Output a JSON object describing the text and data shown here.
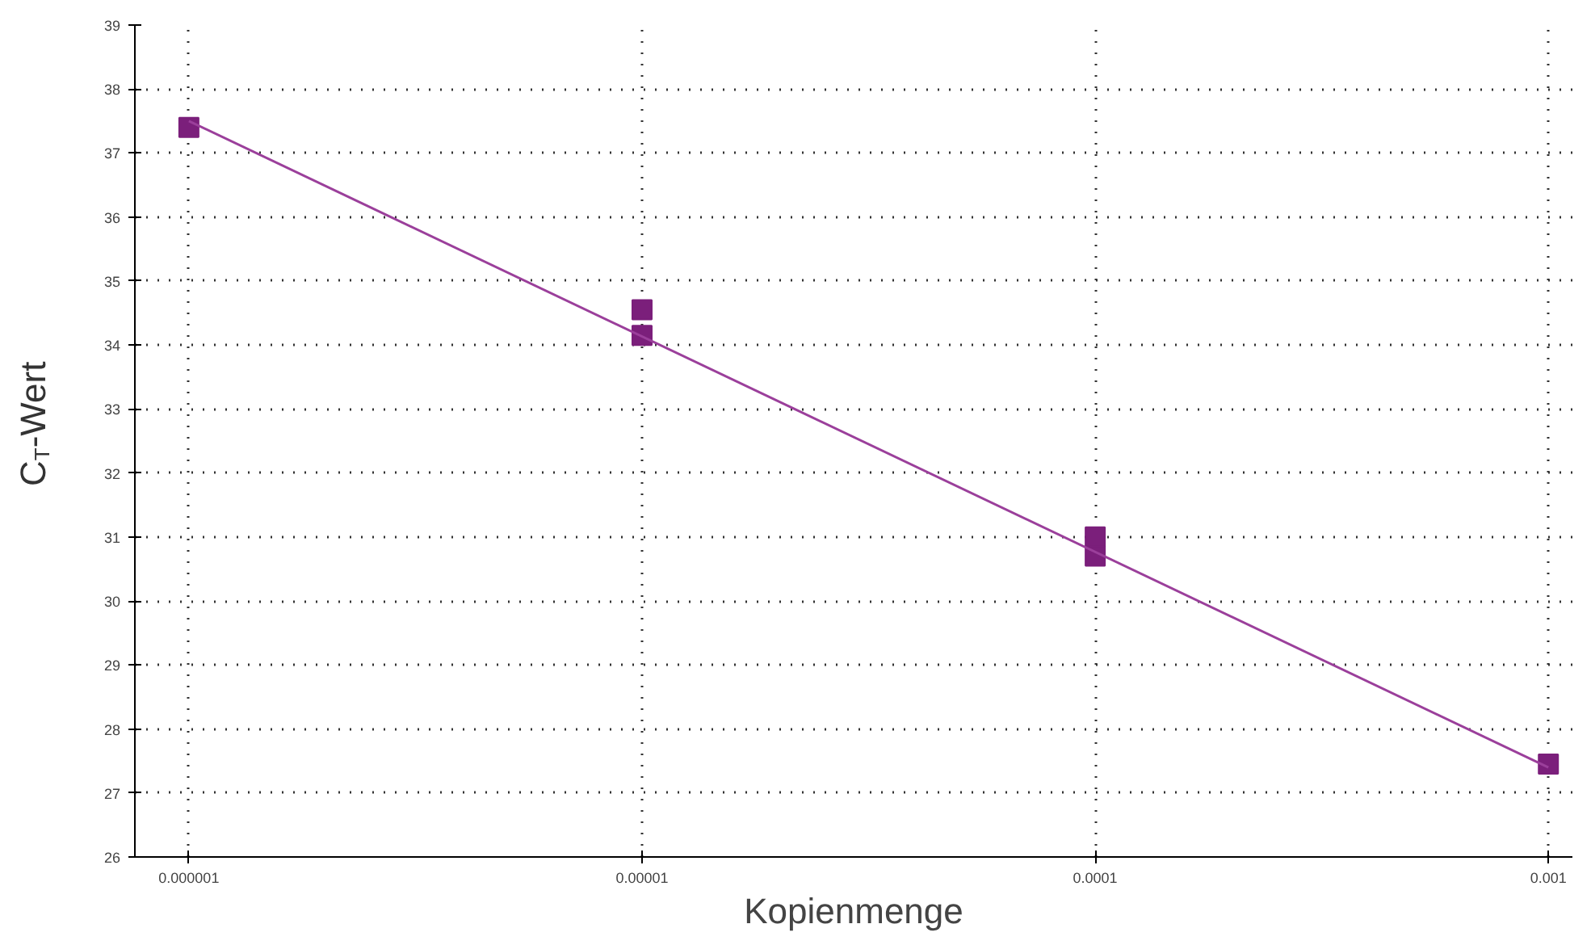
{
  "chart_data": {
    "type": "line",
    "xlabel": "Kopienmenge",
    "ylabel": "C$_{T}$-Wert",
    "log": "x",
    "grid": true,
    "xlim": [
      7.6e-07,
      0.00113
    ],
    "ylim": [
      26,
      39
    ],
    "xticks": [
      {
        "value": 1e-06,
        "label": "0.000001"
      },
      {
        "value": 1e-05,
        "label": "0.00001"
      },
      {
        "value": 0.0001,
        "label": "0.0001"
      },
      {
        "value": 0.001,
        "label": "0.001"
      }
    ],
    "yticks": [
      26,
      27,
      28,
      29,
      30,
      31,
      32,
      33,
      34,
      35,
      36,
      37,
      38,
      39
    ],
    "series": [
      {
        "type": "scatter",
        "marker": "square",
        "color": "#7b1f7b",
        "x": [
          1e-06,
          1e-05,
          1e-05,
          0.0001,
          0.0001,
          0.001
        ],
        "values": [
          37.4,
          34.55,
          34.15,
          31.0,
          30.7,
          27.45
        ]
      },
      {
        "color": "#9b3f9b",
        "x": [
          1e-06,
          0.001
        ],
        "values": [
          37.5,
          27.4
        ]
      }
    ]
  }
}
